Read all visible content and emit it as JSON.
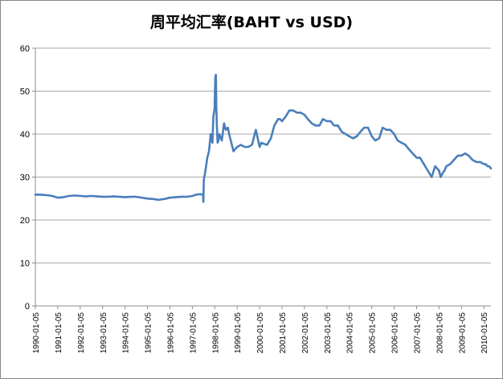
{
  "chart_data": {
    "type": "line",
    "title": "周平均汇率(BAHT vs USD)",
    "xlabel": "",
    "ylabel": "",
    "ylim": [
      0,
      60
    ],
    "yticks": [
      0,
      10,
      20,
      30,
      40,
      50,
      60
    ],
    "grid": true,
    "legend": "none",
    "xlim": [
      "1990-01-05",
      "2010-04-30"
    ],
    "x_tick_labels": [
      "1990-01-05",
      "1991-01-05",
      "1992-01-05",
      "1993-01-05",
      "1994-01-05",
      "1995-01-05",
      "1996-01-05",
      "1997-01-05",
      "1998-01-05",
      "1999-01-05",
      "2000-01-05",
      "2001-01-05",
      "2002-01-05",
      "2003-01-05",
      "2004-01-05",
      "2005-01-05",
      "2006-01-05",
      "2007-01-05",
      "2008-01-05",
      "2009-01-05",
      "2010-01-05"
    ],
    "series": [
      {
        "color": "#4a7ebb",
        "x": [
          "1990-01-05",
          "1990-04-05",
          "1990-07-05",
          "1990-10-05",
          "1991-01-05",
          "1991-04-05",
          "1991-07-05",
          "1991-10-05",
          "1992-01-05",
          "1992-04-05",
          "1992-07-05",
          "1992-10-05",
          "1993-01-05",
          "1993-04-05",
          "1993-07-05",
          "1993-10-05",
          "1994-01-05",
          "1994-04-05",
          "1994-07-05",
          "1994-10-05",
          "1995-01-05",
          "1995-04-05",
          "1995-07-05",
          "1995-10-05",
          "1996-01-05",
          "1996-04-05",
          "1996-07-05",
          "1996-10-05",
          "1997-01-05",
          "1997-04-05",
          "1997-06-27",
          "1997-07-04",
          "1997-07-11",
          "1997-08-01",
          "1997-09-05",
          "1997-10-03",
          "1997-10-31",
          "1997-11-28",
          "1997-12-12",
          "1998-01-02",
          "1998-01-09",
          "1998-01-16",
          "1998-01-23",
          "1998-01-30",
          "1998-02-06",
          "1998-02-20",
          "1998-03-06",
          "1998-03-20",
          "1998-04-03",
          "1998-05-01",
          "1998-06-05",
          "1998-07-03",
          "1998-08-07",
          "1998-09-04",
          "1998-10-02",
          "1998-11-06",
          "1998-12-04",
          "1999-01-05",
          "1999-03-05",
          "1999-05-07",
          "1999-07-02",
          "1999-09-03",
          "1999-11-05",
          "2000-01-05",
          "2000-02-04",
          "2000-03-03",
          "2000-05-05",
          "2000-07-07",
          "2000-09-01",
          "2000-11-03",
          "2000-12-01",
          "2001-01-05",
          "2001-03-02",
          "2001-05-04",
          "2001-07-06",
          "2001-09-07",
          "2001-11-02",
          "2002-01-05",
          "2002-03-01",
          "2002-05-03",
          "2002-07-05",
          "2002-09-06",
          "2002-11-01",
          "2003-01-05",
          "2003-03-07",
          "2003-05-02",
          "2003-07-04",
          "2003-09-05",
          "2003-11-07",
          "2004-01-05",
          "2004-03-05",
          "2004-05-07",
          "2004-07-02",
          "2004-09-03",
          "2004-11-05",
          "2005-01-05",
          "2005-03-04",
          "2005-05-06",
          "2005-07-01",
          "2005-09-02",
          "2005-11-04",
          "2006-01-05",
          "2006-03-03",
          "2006-05-05",
          "2006-07-07",
          "2006-09-01",
          "2006-11-03",
          "2007-01-05",
          "2007-03-02",
          "2007-05-04",
          "2007-07-06",
          "2007-09-07",
          "2007-11-02",
          "2007-12-07",
          "2008-01-05",
          "2008-02-01",
          "2008-03-07",
          "2008-04-04",
          "2008-05-02",
          "2008-07-04",
          "2008-09-05",
          "2008-11-07",
          "2009-01-05",
          "2009-03-06",
          "2009-05-01",
          "2009-07-03",
          "2009-09-04",
          "2009-11-06",
          "2010-01-05",
          "2010-02-05",
          "2010-03-05",
          "2010-04-02",
          "2010-04-30"
        ],
        "values": [
          25.9,
          25.9,
          25.8,
          25.6,
          25.2,
          25.3,
          25.6,
          25.7,
          25.6,
          25.5,
          25.6,
          25.5,
          25.4,
          25.4,
          25.5,
          25.4,
          25.3,
          25.4,
          25.4,
          25.2,
          25.0,
          24.9,
          24.7,
          24.9,
          25.2,
          25.3,
          25.4,
          25.4,
          25.6,
          26.0,
          26.0,
          24.2,
          29.5,
          31.0,
          34.5,
          36.0,
          40.0,
          38.0,
          44.0,
          46.0,
          50.5,
          53.5,
          53.8,
          46.5,
          43.0,
          38.0,
          38.5,
          40.0,
          39.5,
          38.5,
          42.5,
          41.0,
          41.5,
          39.5,
          38.0,
          36.0,
          36.5,
          37.0,
          37.5,
          37.0,
          37.0,
          37.5,
          41.0,
          37.0,
          38.0,
          37.8,
          37.5,
          39.0,
          42.0,
          43.5,
          43.5,
          43.0,
          44.0,
          45.5,
          45.5,
          45.0,
          45.0,
          44.5,
          43.5,
          42.5,
          42.0,
          42.0,
          43.5,
          43.0,
          43.0,
          42.0,
          42.0,
          40.5,
          40.0,
          39.5,
          39.0,
          39.5,
          40.5,
          41.5,
          41.5,
          39.5,
          38.5,
          39.0,
          41.5,
          41.0,
          41.0,
          40.0,
          38.5,
          38.0,
          37.5,
          36.5,
          35.5,
          34.5,
          34.5,
          33.0,
          31.5,
          30.0,
          32.5,
          32.0,
          31.5,
          30.0,
          31.0,
          31.5,
          32.5,
          33.0,
          34.0,
          35.0,
          35.0,
          35.5,
          35.0,
          34.0,
          33.5,
          33.5,
          33.0,
          33.0,
          32.5,
          32.5,
          32.0
        ]
      }
    ]
  }
}
